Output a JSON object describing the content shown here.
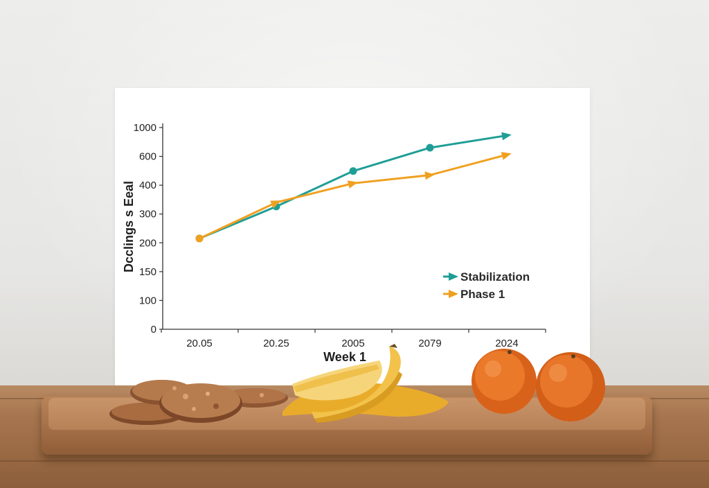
{
  "chart_data": {
    "type": "line",
    "xlabel": "Week 1",
    "ylabel": "Dcclings s Eeal",
    "categories": [
      "20.05",
      "20.25",
      "2005",
      "2079",
      "2024"
    ],
    "y_ticks": [
      "0",
      "100",
      "150",
      "200",
      "300",
      "400",
      "600",
      "1000"
    ],
    "series": [
      {
        "name": "Stabilization",
        "color": "#1f9e96",
        "values": [
          215,
          326,
          498,
          720,
          890
        ],
        "marker": "circle",
        "end_marker": "arrow"
      },
      {
        "name": "Phase 1",
        "color": "#f0a020",
        "values": [
          215,
          340,
          413,
          470,
          623
        ],
        "marker": "arrow"
      }
    ],
    "legend": {
      "position": "bottom-right"
    },
    "grid": false
  },
  "scene": {
    "objects": [
      "cookies",
      "bananas",
      "oranges",
      "cutting-board",
      "wooden-table"
    ]
  }
}
